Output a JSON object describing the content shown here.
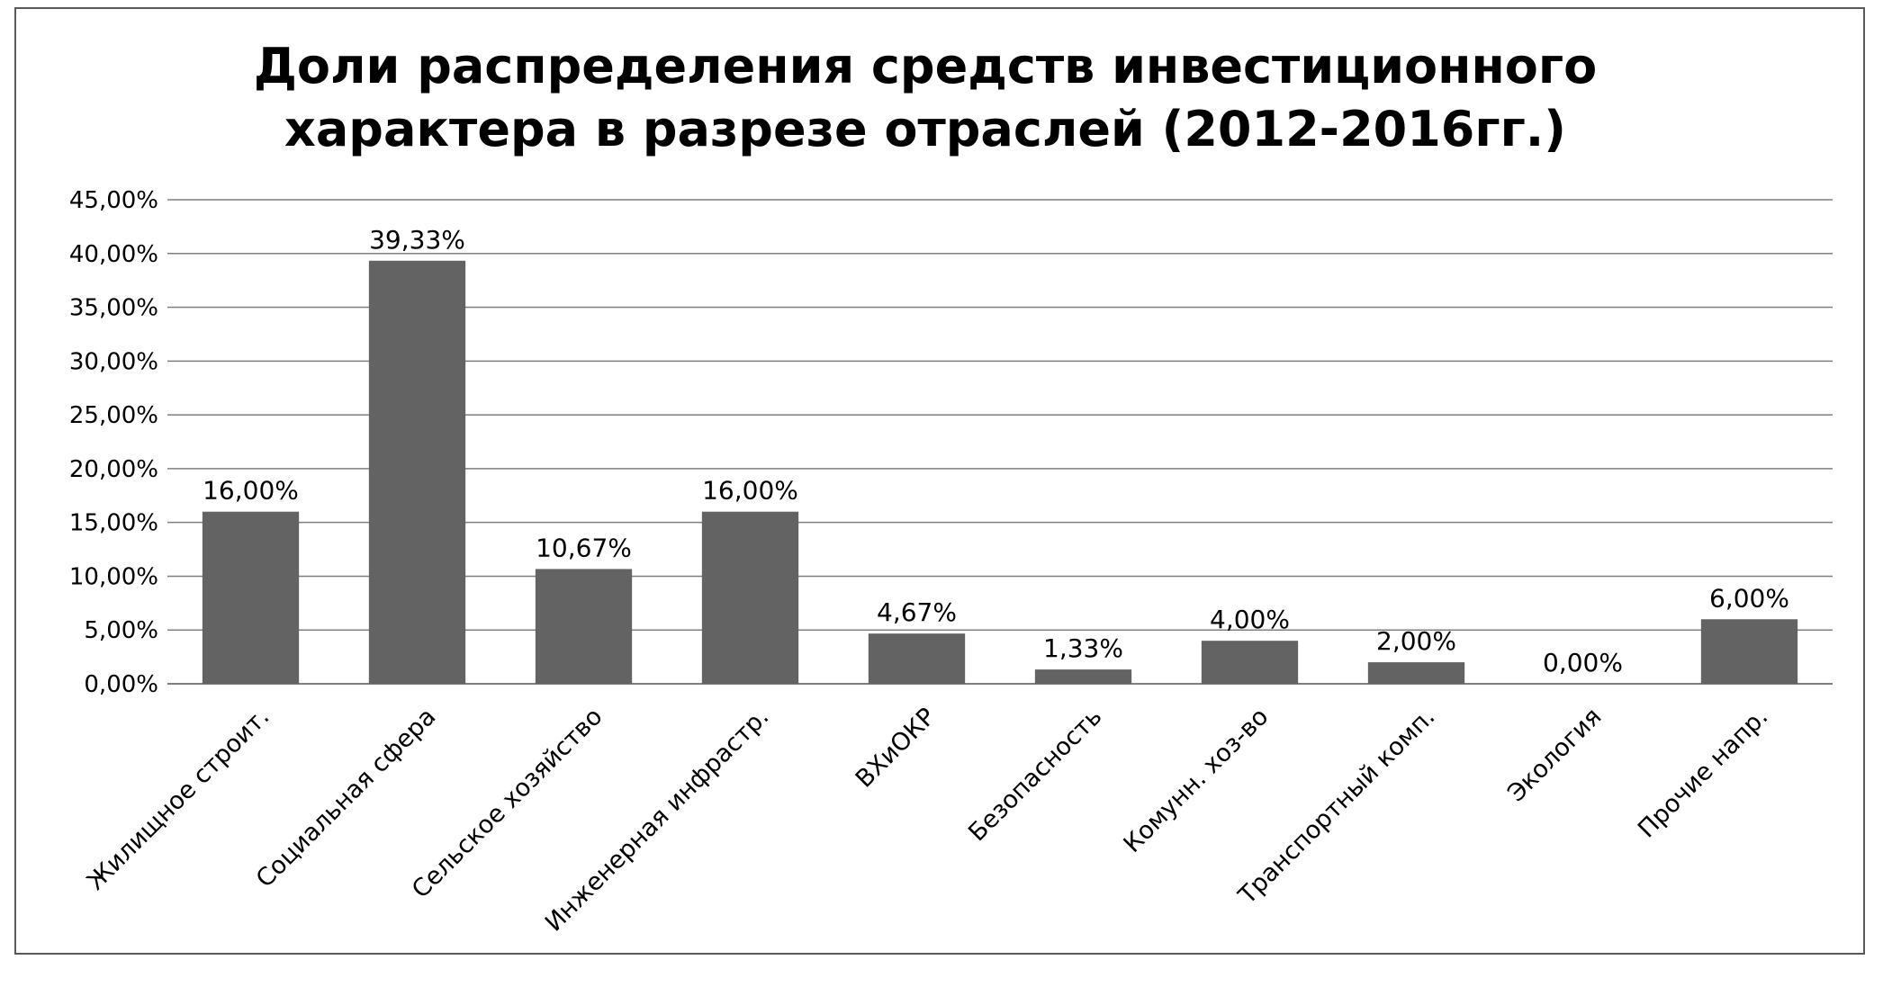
{
  "chart_data": {
    "type": "bar",
    "title": "Доли распределения средств инвестиционного характера в разрезе отраслей (2012-2016гг.)",
    "title_lines": [
      "Доли распределения средств инвестиционного",
      "характера в разрезе отраслей (2012-2016гг.)"
    ],
    "categories": [
      "Жилищное строит.",
      "Социальная сфера",
      "Сельское хозяйство",
      "Инженерная инфрастр.",
      "ВХиОКР",
      "Безопасность",
      "Комунн. хоз-во",
      "Транспортный комп.",
      "Экология",
      "Прочие напр."
    ],
    "values": [
      16.0,
      39.33,
      10.67,
      16.0,
      4.67,
      1.33,
      4.0,
      2.0,
      0.0,
      6.0
    ],
    "data_labels": [
      "16,00%",
      "39,33%",
      "10,67%",
      "16,00%",
      "4,67%",
      "1,33%",
      "4,00%",
      "2,00%",
      "0,00%",
      "6,00%"
    ],
    "ylim": [
      0,
      45
    ],
    "yticks": [
      0,
      5,
      10,
      15,
      20,
      25,
      30,
      35,
      40,
      45
    ],
    "ytick_labels": [
      "0,00%",
      "5,00%",
      "10,00%",
      "15,00%",
      "20,00%",
      "25,00%",
      "30,00%",
      "35,00%",
      "40,00%",
      "45,00%"
    ],
    "xlabel": "",
    "ylabel": "",
    "grid": true,
    "legend": "none",
    "bar_color": "#636363"
  }
}
